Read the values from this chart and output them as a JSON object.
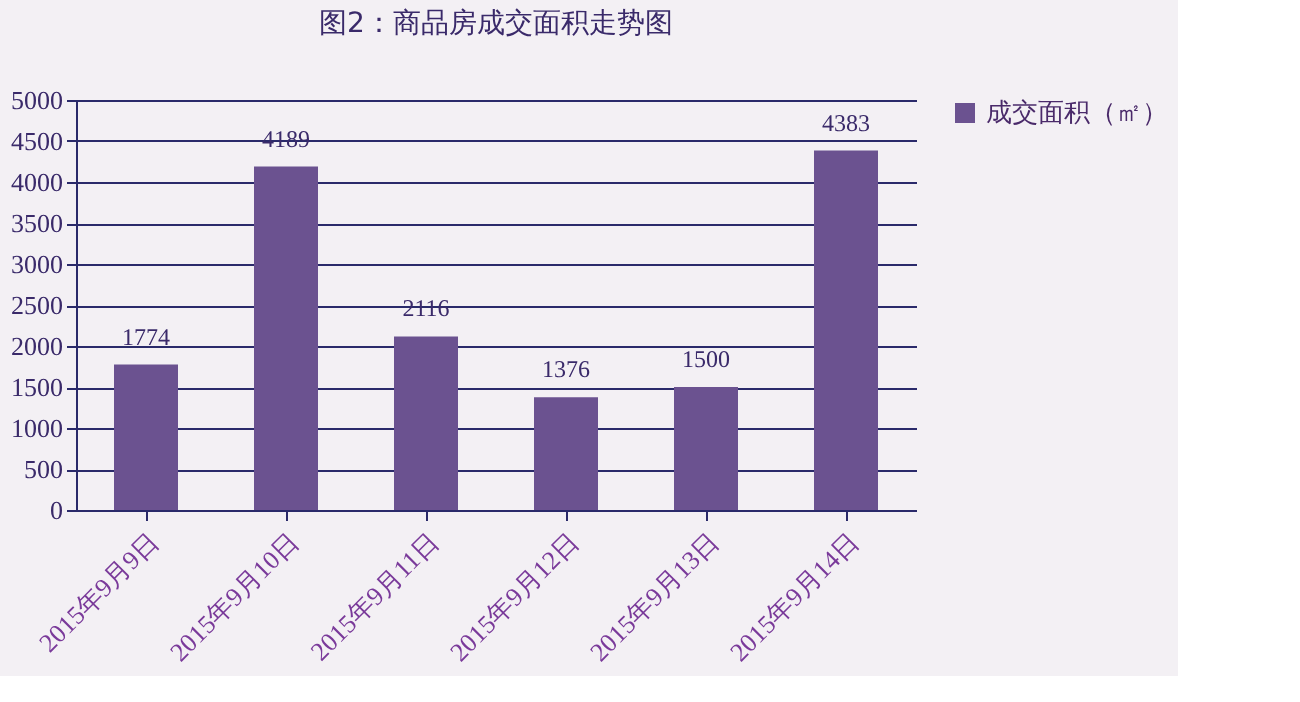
{
  "chart_data": {
    "type": "bar",
    "title": "图2：商品房成交面积走势图",
    "categories": [
      "2015年9月9日",
      "2015年9月10日",
      "2015年9月11日",
      "2015年9月12日",
      "2015年9月13日",
      "2015年9月14日"
    ],
    "series": [
      {
        "name": "成交面积（㎡）",
        "color": "#6b5290",
        "values": [
          1774,
          4189,
          2116,
          1376,
          1500,
          4383
        ]
      }
    ],
    "ylim": [
      0,
      5000
    ],
    "yticks": [
      0,
      500,
      1000,
      1500,
      2000,
      2500,
      3000,
      3500,
      4000,
      4500,
      5000
    ],
    "grid": "y",
    "legend": "right",
    "data_labels": true
  }
}
